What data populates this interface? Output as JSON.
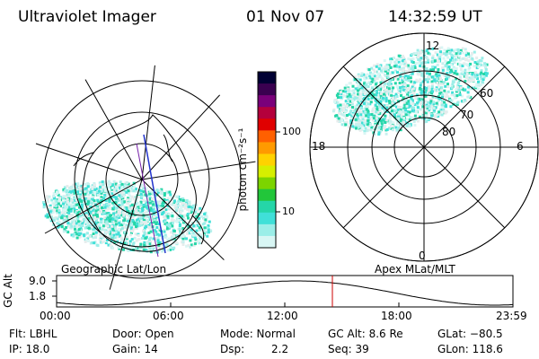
{
  "header": {
    "instrument": "Ultraviolet Imager",
    "date": "01 Nov 07",
    "time": "14:32:59 UT"
  },
  "colorbar": {
    "unit_label": "photon cm⁻²s⁻¹",
    "ticks": [
      "100",
      "10"
    ],
    "colors": [
      "#000033",
      "#3a0050",
      "#7a007a",
      "#b4003c",
      "#e00000",
      "#ff6000",
      "#ff9a00",
      "#ffd200",
      "#d6ef00",
      "#7cd400",
      "#22c63a",
      "#25d6a8",
      "#40e0d8",
      "#9beee8",
      "#d8f6f4"
    ]
  },
  "left_map": {
    "caption": "Geographic Lat/Lon"
  },
  "right_map": {
    "caption": "Apex MLat/MLT",
    "mlt_labels": {
      "top": "12",
      "left": "18",
      "right": "6",
      "bottom": "0"
    },
    "lat_labels": [
      "60",
      "70",
      "80"
    ]
  },
  "gc_plot": {
    "ylabel": "GC Alt",
    "y_ticks": [
      "9.0",
      "1.8"
    ],
    "x_ticks": [
      "00:00",
      "06:00",
      "12:00",
      "18:00",
      "23:59"
    ]
  },
  "footer": {
    "flt": "Flt: LBHL",
    "ip": "IP: 18.0",
    "door": "Door: Open",
    "gain": "Gain: 14",
    "mode": "Mode: Normal",
    "dsp_label": "Dsp:",
    "dsp_value": "2.2",
    "gc_alt": "GC Alt: 8.6 Re",
    "seq": "Seq: 39",
    "glat": "GLat: −80.5",
    "glon": "GLon: 118.6"
  }
}
